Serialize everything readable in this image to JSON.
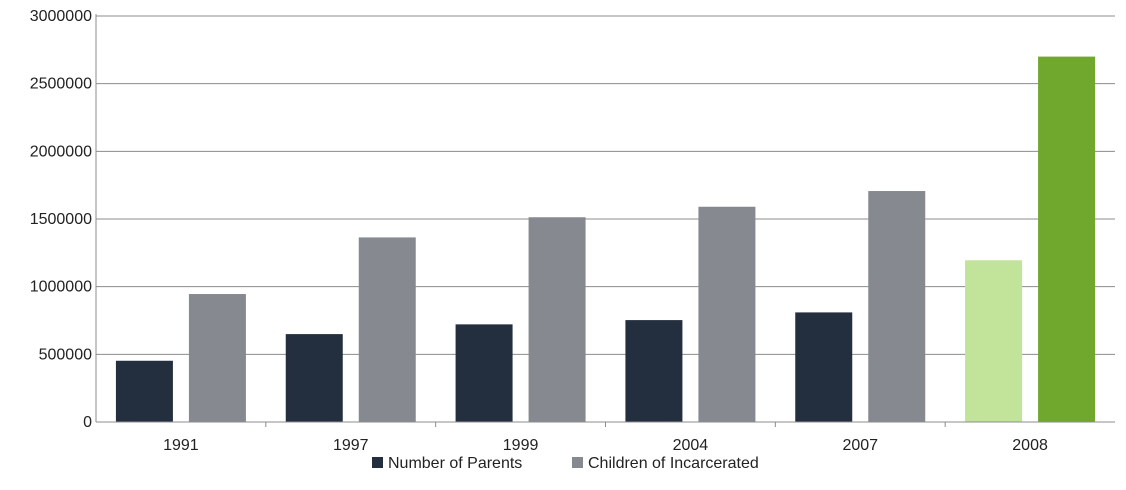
{
  "chart_data": {
    "type": "bar",
    "categories": [
      "1991",
      "1997",
      "1999",
      "2004",
      "2007",
      "2008"
    ],
    "series": [
      {
        "name": "Number of Parents",
        "color": "#232f3e",
        "values": [
          452500,
          649500,
          721500,
          753000,
          809800,
          1195000
        ],
        "point_colors": [
          "#232f3e",
          "#232f3e",
          "#232f3e",
          "#232f3e",
          "#232f3e",
          "#c1e39a"
        ]
      },
      {
        "name": "Children of Incarcerated",
        "color": "#86898f",
        "values": [
          945600,
          1364000,
          1512900,
          1590500,
          1706600,
          2700000
        ],
        "point_colors": [
          "#86898f",
          "#86898f",
          "#86898f",
          "#86898f",
          "#86898f",
          "#6fa82c"
        ]
      }
    ],
    "yticks": [
      "0",
      "500000",
      "1000000",
      "1500000",
      "2000000",
      "2500000",
      "3000000"
    ],
    "ylim": [
      0,
      3000000
    ],
    "grid": true,
    "legend": "bottom"
  }
}
